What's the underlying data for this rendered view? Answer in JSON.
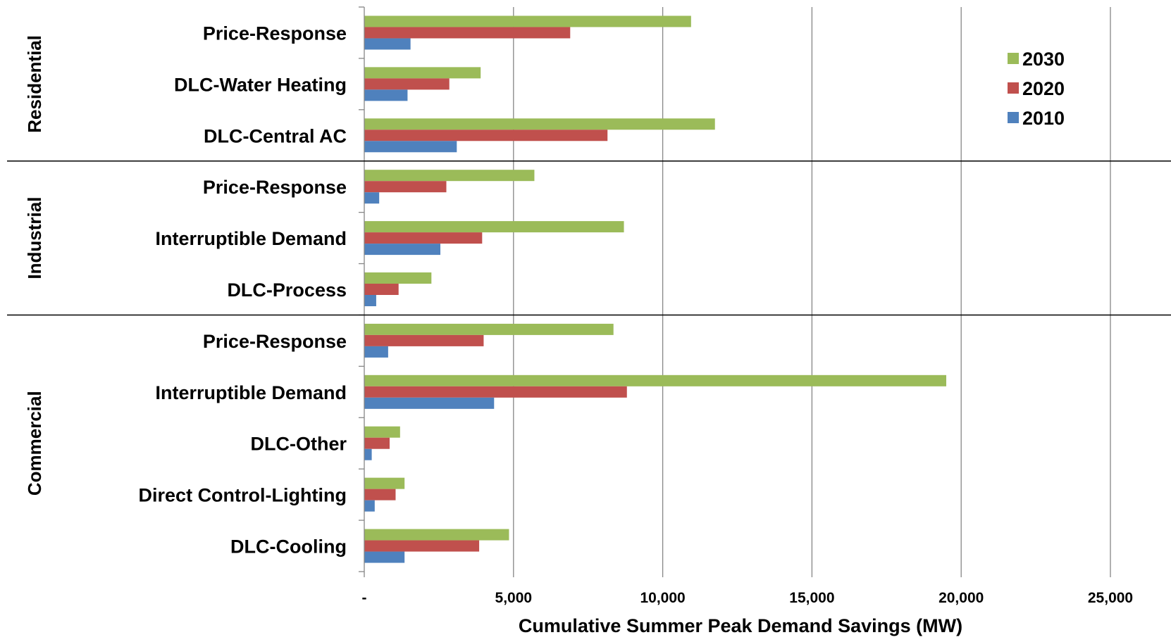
{
  "chart_data": {
    "type": "bar",
    "orientation": "horizontal",
    "xlabel": "Cumulative Summer Peak Demand Savings (MW)",
    "xlim": [
      0,
      25000
    ],
    "x_ticks": [
      {
        "value": 0,
        "label": "-"
      },
      {
        "value": 5000,
        "label": "5,000"
      },
      {
        "value": 10000,
        "label": "10,000"
      },
      {
        "value": 15000,
        "label": "15,000"
      },
      {
        "value": 20000,
        "label": "20,000"
      },
      {
        "value": 25000,
        "label": "25,000"
      }
    ],
    "grid": "vertical",
    "legend_position": "top-right",
    "groups": [
      {
        "name": "Residential",
        "categories": [
          "Price-Response",
          "DLC-Water Heating",
          "DLC-Central AC"
        ]
      },
      {
        "name": "Industrial",
        "categories": [
          "Price-Response",
          "Interruptible Demand",
          "DLC-Process"
        ]
      },
      {
        "name": "Commercial",
        "categories": [
          "Price-Response",
          "Interruptible Demand",
          "DLC-Other",
          "Direct Control-Lighting",
          "DLC-Cooling"
        ]
      }
    ],
    "categories": [
      "Price-Response",
      "DLC-Water Heating",
      "DLC-Central AC",
      "Price-Response",
      "Interruptible Demand",
      "DLC-Process",
      "Price-Response",
      "Interruptible Demand",
      "DLC-Other",
      "Direct Control-Lighting",
      "DLC-Cooling"
    ],
    "series": [
      {
        "name": "2030",
        "color": "#9bbb59",
        "values": [
          10950,
          3900,
          11750,
          5700,
          8700,
          2250,
          8350,
          19500,
          1200,
          1350,
          4850
        ]
      },
      {
        "name": "2020",
        "color": "#c0504d",
        "values": [
          6900,
          2850,
          8150,
          2750,
          3950,
          1150,
          4000,
          8800,
          850,
          1050,
          3850
        ]
      },
      {
        "name": "2010",
        "color": "#4f81bd",
        "values": [
          1550,
          1450,
          3100,
          500,
          2550,
          400,
          800,
          4350,
          250,
          350,
          1350
        ]
      }
    ]
  }
}
